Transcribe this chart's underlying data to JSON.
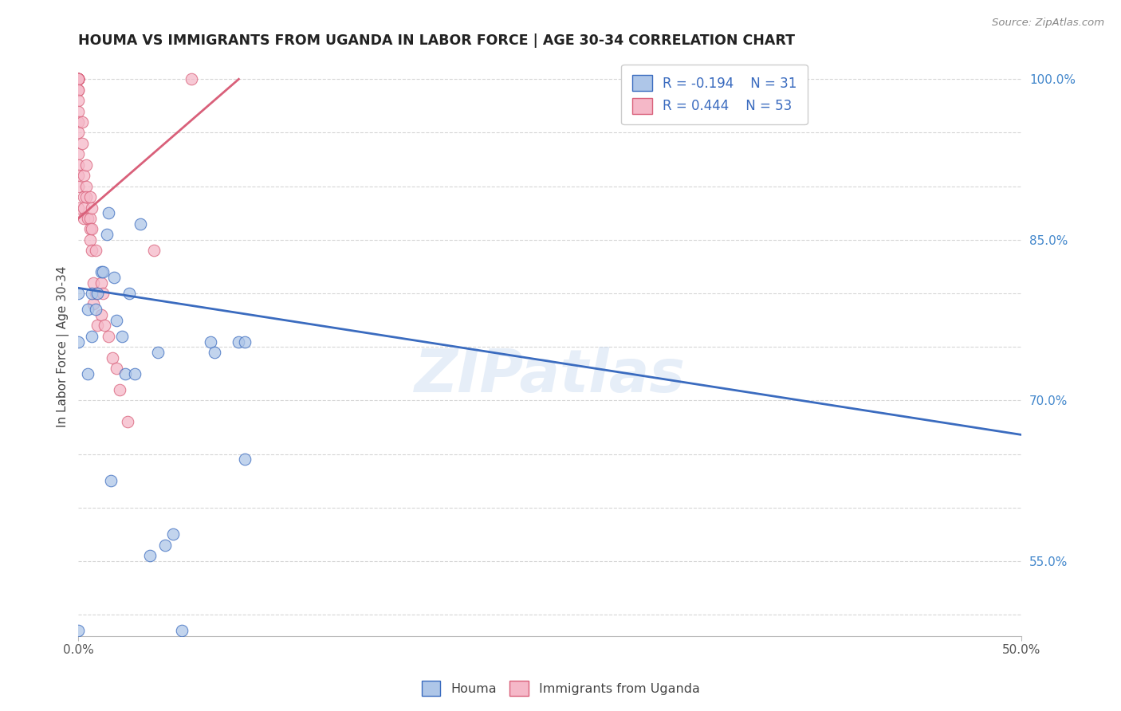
{
  "title": "HOUMA VS IMMIGRANTS FROM UGANDA IN LABOR FORCE | AGE 30-34 CORRELATION CHART",
  "source": "Source: ZipAtlas.com",
  "xlabel": "",
  "ylabel": "In Labor Force | Age 30-34",
  "xlim": [
    0.0,
    0.5
  ],
  "ylim": [
    0.48,
    1.02
  ],
  "xticks": [
    0.0,
    0.5
  ],
  "xticklabels": [
    "0.0%",
    "50.0%"
  ],
  "ytick_labeled": [
    0.55,
    0.7,
    0.85,
    1.0
  ],
  "ytick_labeled_str": [
    "55.0%",
    "70.0%",
    "85.0%",
    "100.0%"
  ],
  "ytick_all": [
    0.5,
    0.55,
    0.6,
    0.65,
    0.7,
    0.75,
    0.8,
    0.85,
    0.9,
    0.95,
    1.0
  ],
  "legend_r_blue": "R = -0.194",
  "legend_n_blue": "N = 31",
  "legend_r_pink": "R = 0.444",
  "legend_n_pink": "N = 53",
  "blue_color": "#aec6e8",
  "pink_color": "#f5b8c8",
  "blue_line_color": "#3a6bbf",
  "pink_line_color": "#d9607a",
  "watermark": "ZIPatlas",
  "blue_trend_x": [
    0.0,
    0.5
  ],
  "blue_trend_y": [
    0.805,
    0.668
  ],
  "pink_trend_x": [
    0.0,
    0.085
  ],
  "pink_trend_y": [
    0.87,
    1.0
  ],
  "houma_x": [
    0.0,
    0.0,
    0.0,
    0.005,
    0.005,
    0.007,
    0.007,
    0.009,
    0.01,
    0.012,
    0.013,
    0.015,
    0.016,
    0.017,
    0.019,
    0.02,
    0.023,
    0.025,
    0.027,
    0.03,
    0.033,
    0.038,
    0.042,
    0.046,
    0.05,
    0.055,
    0.07,
    0.072,
    0.085,
    0.088,
    0.088
  ],
  "houma_y": [
    0.485,
    0.755,
    0.8,
    0.785,
    0.725,
    0.8,
    0.76,
    0.785,
    0.8,
    0.82,
    0.82,
    0.855,
    0.875,
    0.625,
    0.815,
    0.775,
    0.76,
    0.725,
    0.8,
    0.725,
    0.865,
    0.555,
    0.745,
    0.565,
    0.575,
    0.485,
    0.755,
    0.745,
    0.755,
    0.755,
    0.645
  ],
  "uganda_x": [
    0.0,
    0.0,
    0.0,
    0.0,
    0.0,
    0.0,
    0.0,
    0.0,
    0.0,
    0.0,
    0.0,
    0.0,
    0.0,
    0.0,
    0.0,
    0.0,
    0.0,
    0.0,
    0.0,
    0.0,
    0.002,
    0.002,
    0.003,
    0.003,
    0.003,
    0.003,
    0.004,
    0.004,
    0.004,
    0.005,
    0.006,
    0.006,
    0.006,
    0.006,
    0.007,
    0.007,
    0.007,
    0.008,
    0.008,
    0.009,
    0.009,
    0.01,
    0.012,
    0.012,
    0.013,
    0.014,
    0.016,
    0.018,
    0.02,
    0.022,
    0.026,
    0.04,
    0.06
  ],
  "uganda_y": [
    1.0,
    1.0,
    1.0,
    1.0,
    1.0,
    1.0,
    1.0,
    1.0,
    1.0,
    0.99,
    0.99,
    0.98,
    0.97,
    0.96,
    0.95,
    0.93,
    0.92,
    0.91,
    0.9,
    0.88,
    0.96,
    0.94,
    0.91,
    0.89,
    0.88,
    0.87,
    0.92,
    0.9,
    0.89,
    0.87,
    0.89,
    0.87,
    0.86,
    0.85,
    0.88,
    0.86,
    0.84,
    0.81,
    0.79,
    0.84,
    0.8,
    0.77,
    0.81,
    0.78,
    0.8,
    0.77,
    0.76,
    0.74,
    0.73,
    0.71,
    0.68,
    0.84,
    1.0
  ]
}
